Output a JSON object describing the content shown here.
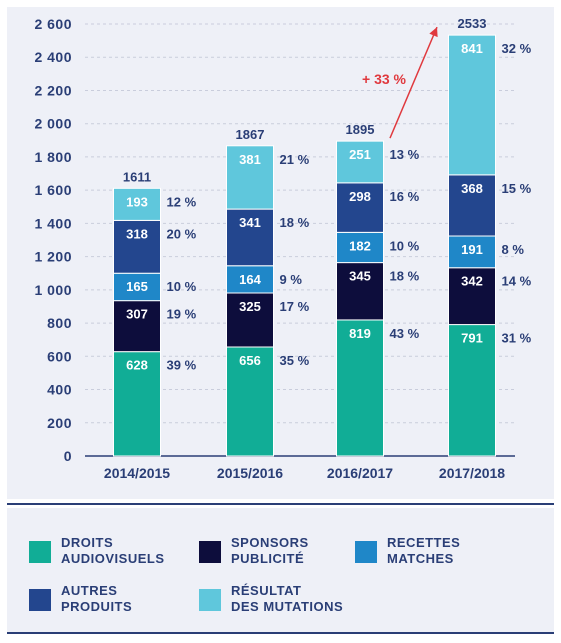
{
  "chart_data": {
    "type": "bar",
    "stacked": true,
    "categories": [
      "2014/2015",
      "2015/2016",
      "2016/2017",
      "2017/2018"
    ],
    "ylim": [
      0,
      2600
    ],
    "yticks": [
      0,
      200,
      400,
      600,
      800,
      1000,
      1200,
      1400,
      1600,
      1800,
      2000,
      2200,
      2400,
      2600
    ],
    "ytick_labels": [
      "0",
      "200",
      "400",
      "600",
      "800",
      "1 000",
      "1 200",
      "1 400",
      "1 600",
      "1 800",
      "2 000",
      "2 200",
      "2 400",
      "2 600"
    ],
    "totals": [
      "1611",
      "1867",
      "1895",
      "2533"
    ],
    "series": [
      {
        "name": "DROITS AUDIOVISUELS",
        "color": "#11ad96",
        "values": [
          628,
          656,
          819,
          791
        ],
        "labels": [
          "628",
          "656",
          "819",
          "791"
        ],
        "pct": [
          "39 %",
          "35 %",
          "43 %",
          "31 %"
        ]
      },
      {
        "name": "SPONSORS PUBLICITÉ",
        "color": "#0d0d3c",
        "values": [
          307,
          325,
          345,
          342
        ],
        "labels": [
          "307",
          "325",
          "345",
          "342"
        ],
        "pct": [
          "19 %",
          "17 %",
          "18 %",
          "14 %"
        ]
      },
      {
        "name": "RECETTES MATCHES",
        "color": "#1f87c8",
        "values": [
          165,
          164,
          182,
          191
        ],
        "labels": [
          "165",
          "164",
          "182",
          "191"
        ],
        "pct": [
          "10 %",
          "9 %",
          "10 %",
          "8 %"
        ]
      },
      {
        "name": "AUTRES PRODUITS",
        "color": "#23468e",
        "values": [
          318,
          341,
          298,
          368
        ],
        "labels": [
          "318",
          "341",
          "298",
          "368"
        ],
        "pct": [
          "20 %",
          "18 %",
          "16 %",
          "15 %"
        ]
      },
      {
        "name": "RÉSULTAT DES MUTATIONS",
        "color": "#5fc7dc",
        "values": [
          193,
          381,
          251,
          841
        ],
        "labels": [
          "193",
          "381",
          "251",
          "841"
        ],
        "pct": [
          "12 %",
          "21 %",
          "13 %",
          "32 %"
        ]
      }
    ],
    "annotation": {
      "text": "+ 33 %",
      "color": "#e0393e",
      "from_category": "2016/2017",
      "to_category": "2017/2018"
    },
    "grid": "dashed horizontal"
  },
  "legend": {
    "items": [
      {
        "label": "DROITS\nAUDIOVISUELS",
        "color": "#11ad96"
      },
      {
        "label": "SPONSORS\nPUBLICITÉ",
        "color": "#0d0d3c"
      },
      {
        "label": "RECETTES\nMATCHES",
        "color": "#1f87c8"
      },
      {
        "label": "AUTRES\nPRODUITS",
        "color": "#23468e"
      },
      {
        "label": "RÉSULTAT\nDES MUTATIONS",
        "color": "#5fc7dc"
      }
    ]
  },
  "colors": {
    "text": "#2a3e76",
    "background": "#eef0f7",
    "accent": "#e0393e"
  }
}
